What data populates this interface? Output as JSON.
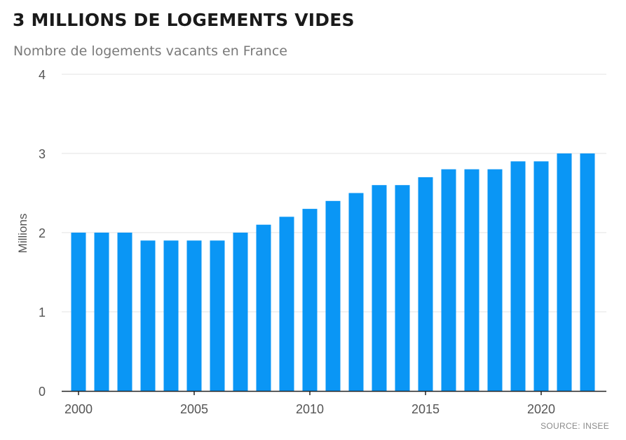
{
  "header": {
    "title": "3 MILLIONS DE LOGEMENTS VIDES",
    "subtitle": "Nombre de logements vacants en France"
  },
  "footer": {
    "source": "SOURCE: INSEE"
  },
  "colors": {
    "bar": "#0a96f5",
    "grid": "#e3e3e3",
    "axis": "#222222",
    "tick_text": "#555555"
  },
  "chart_data": {
    "type": "bar",
    "title": "3 MILLIONS DE LOGEMENTS VIDES",
    "subtitle": "Nombre de logements vacants en France",
    "xlabel": "",
    "ylabel": "Millions",
    "ylim": [
      0,
      4
    ],
    "yticks": [
      0,
      1,
      2,
      3,
      4
    ],
    "xticks": [
      2000,
      2005,
      2010,
      2015,
      2020
    ],
    "grid": true,
    "categories": [
      2000,
      2001,
      2002,
      2003,
      2004,
      2005,
      2006,
      2007,
      2008,
      2009,
      2010,
      2011,
      2012,
      2013,
      2014,
      2015,
      2016,
      2017,
      2018,
      2019,
      2020,
      2021,
      2022
    ],
    "values": [
      2.0,
      2.0,
      2.0,
      1.9,
      1.9,
      1.9,
      1.9,
      2.0,
      2.1,
      2.2,
      2.3,
      2.4,
      2.5,
      2.6,
      2.6,
      2.7,
      2.8,
      2.8,
      2.8,
      2.9,
      2.9,
      3.0,
      3.0
    ]
  }
}
